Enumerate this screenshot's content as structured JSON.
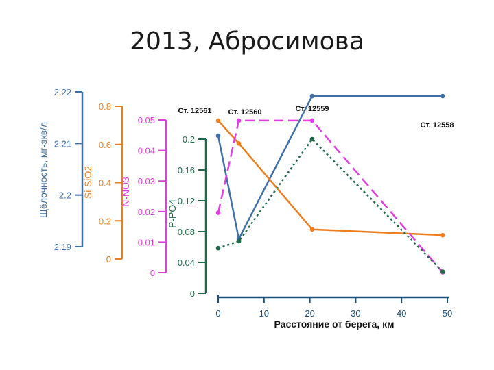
{
  "title": "2013, Абросимова",
  "chart_data": {
    "type": "line",
    "xlabel": "Расстояние от берега, км",
    "xlim": [
      0,
      50
    ],
    "xticks": [
      "0",
      "10",
      "20",
      "30",
      "40",
      "50"
    ],
    "x": [
      0,
      4.5,
      20.5,
      49
    ],
    "stations": [
      {
        "label": "Ст. 12561",
        "x": 0
      },
      {
        "label": "Ст. 12560",
        "x": 4.5
      },
      {
        "label": "Ст. 12559",
        "x": 20.5
      },
      {
        "label": "Ст. 12558",
        "x": 49
      }
    ],
    "axes": [
      {
        "id": "alk",
        "label": "Щёлочность, мг-экв/л",
        "color": "#3f6fa8",
        "ylim": [
          2.19,
          2.22
        ],
        "ticks": [
          "2.19",
          "2.2",
          "2.21",
          "2.22"
        ]
      },
      {
        "id": "si",
        "label": "Si-SiO2",
        "color": "#ee7d1e",
        "ylim": [
          0,
          0.8
        ],
        "ticks": [
          "0",
          "0.2",
          "0.4",
          "0.6",
          "0.8"
        ]
      },
      {
        "id": "n",
        "label": "N-NO3",
        "color": "#e23de0",
        "ylim": [
          0,
          0.05
        ],
        "ticks": [
          "0",
          "0.01",
          "0.02",
          "0.03",
          "0.04",
          "0.05"
        ]
      },
      {
        "id": "p",
        "label": "P-PO4",
        "color": "#1f6a4a",
        "ylim": [
          0,
          0.2
        ],
        "ticks": [
          "0",
          "0.04",
          "0.08",
          "0.12",
          "0.16",
          "0.2"
        ]
      }
    ],
    "series": [
      {
        "axis": "alk",
        "style": "solid",
        "color": "#3f6fa8",
        "values": [
          2.2115,
          2.1915,
          2.2192,
          2.2192
        ]
      },
      {
        "axis": "si",
        "style": "solid",
        "color": "#ee7d1e",
        "values": [
          0.725,
          0.605,
          0.155,
          0.125
        ]
      },
      {
        "axis": "n",
        "style": "dash",
        "color": "#e23de0",
        "values": [
          0.0196,
          0.0498,
          0.0498,
          0.0001
        ]
      },
      {
        "axis": "p",
        "style": "dot",
        "color": "#1f6a4a",
        "values": [
          0.0585,
          0.0675,
          0.2,
          0.028
        ]
      }
    ]
  }
}
